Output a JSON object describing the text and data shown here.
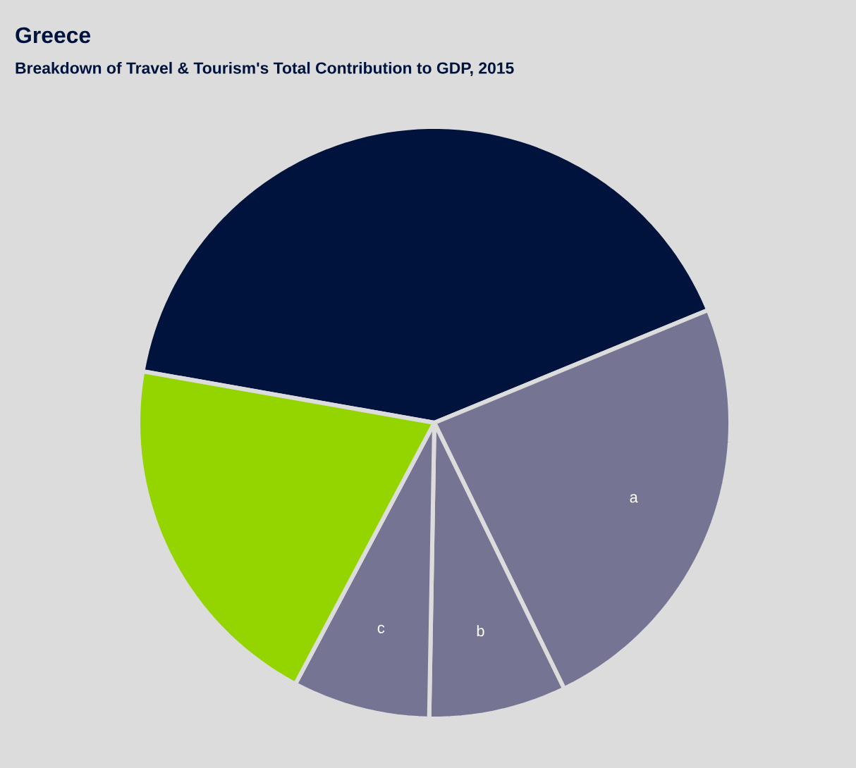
{
  "chart_data": {
    "type": "pie",
    "title": "Greece",
    "subtitle": "Breakdown of Travel & Tourism's Total Contribution to GDP, 2015",
    "categories": [
      null,
      "a",
      "b",
      "c",
      null
    ],
    "values": [
      41,
      24,
      7.5,
      7.5,
      20
    ],
    "colors": [
      "#00133d",
      "#767493",
      "#767493",
      "#767493",
      "#94d500"
    ]
  }
}
